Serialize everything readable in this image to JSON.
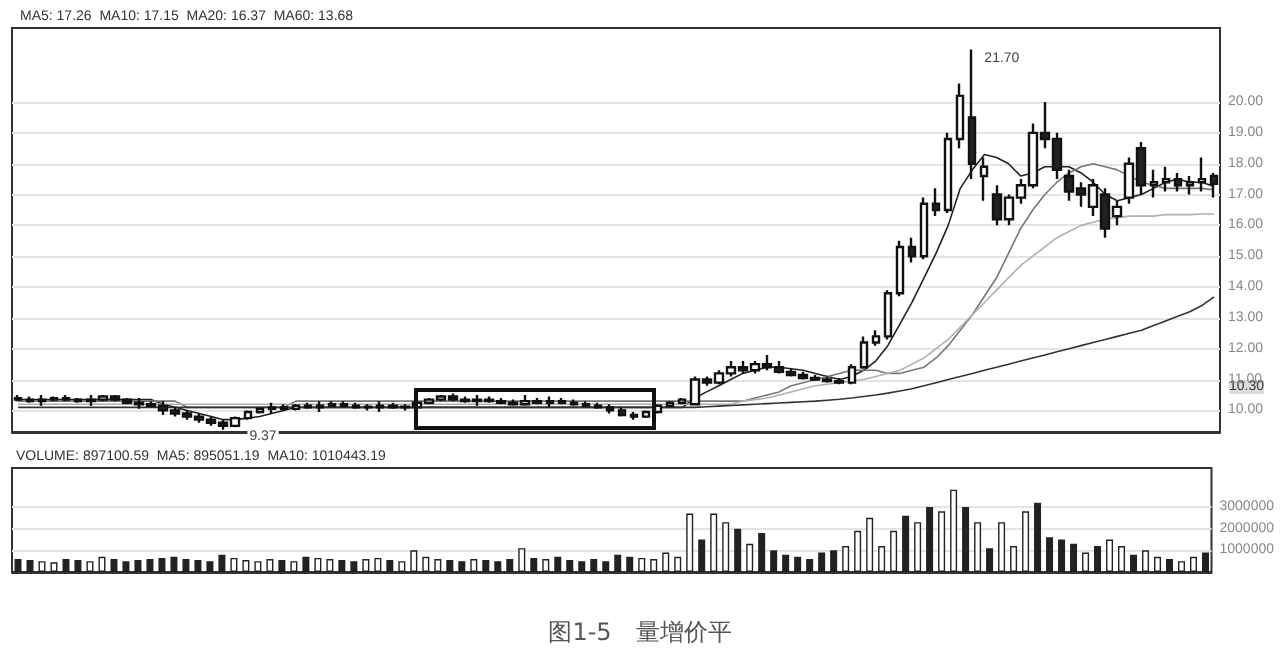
{
  "chart_data": [
    {
      "type": "candlestick",
      "annotations": [
        "MA5: 17.26  MA10: 17.15  MA20: 16.37  MA60: 13.68",
        "21.70",
        "9.37",
        "10.30"
      ],
      "categories": [
        null,
        null,
        null,
        null,
        null,
        null,
        null,
        null,
        null,
        null,
        null,
        null,
        null,
        null,
        null,
        null,
        null,
        null,
        null,
        null,
        null,
        null,
        null,
        null,
        null,
        null,
        null,
        null,
        null,
        null,
        null,
        null,
        null,
        null,
        null,
        null,
        null,
        null,
        null,
        null,
        null,
        null,
        null,
        null,
        null,
        null,
        null,
        null,
        null,
        null,
        null,
        null,
        null,
        null,
        null,
        null,
        null,
        null,
        null,
        null,
        null,
        null,
        null,
        null,
        null,
        null,
        null,
        null,
        null,
        null,
        null,
        null,
        null,
        null,
        null,
        null,
        null,
        null,
        null,
        null,
        null,
        null,
        null,
        null,
        null,
        null,
        null,
        null,
        null,
        null,
        null,
        null,
        null,
        null,
        null,
        null,
        null,
        null,
        null,
        null
      ],
      "ohlc": [
        [
          10.4,
          10.5,
          10.3,
          10.35
        ],
        [
          10.35,
          10.45,
          10.25,
          10.3
        ],
        [
          10.3,
          10.5,
          10.15,
          10.35
        ],
        [
          10.35,
          10.45,
          10.3,
          10.4
        ],
        [
          10.4,
          10.5,
          10.3,
          10.35
        ],
        [
          10.35,
          10.4,
          10.25,
          10.3
        ],
        [
          10.3,
          10.5,
          10.15,
          10.35
        ],
        [
          10.35,
          10.5,
          10.3,
          10.45
        ],
        [
          10.45,
          10.5,
          10.3,
          10.35
        ],
        [
          10.35,
          10.4,
          10.2,
          10.25
        ],
        [
          10.25,
          10.4,
          10.05,
          10.2
        ],
        [
          10.2,
          10.3,
          10.1,
          10.15
        ],
        [
          10.15,
          10.3,
          9.85,
          10.0
        ],
        [
          10.0,
          10.1,
          9.8,
          9.9
        ],
        [
          9.9,
          10.0,
          9.7,
          9.8
        ],
        [
          9.8,
          9.9,
          9.6,
          9.7
        ],
        [
          9.7,
          9.8,
          9.5,
          9.6
        ],
        [
          9.6,
          9.7,
          9.37,
          9.5
        ],
        [
          9.5,
          9.8,
          9.45,
          9.75
        ],
        [
          9.75,
          10.0,
          9.7,
          9.95
        ],
        [
          9.95,
          10.1,
          9.9,
          10.05
        ],
        [
          10.05,
          10.25,
          9.9,
          10.1
        ],
        [
          10.1,
          10.2,
          10.0,
          10.05
        ],
        [
          10.05,
          10.2,
          10.0,
          10.15
        ],
        [
          10.15,
          10.25,
          10.05,
          10.1
        ],
        [
          10.1,
          10.3,
          9.95,
          10.15
        ],
        [
          10.15,
          10.3,
          10.1,
          10.2
        ],
        [
          10.2,
          10.3,
          10.1,
          10.15
        ],
        [
          10.15,
          10.25,
          10.05,
          10.1
        ],
        [
          10.1,
          10.2,
          10.0,
          10.12
        ],
        [
          10.1,
          10.3,
          9.95,
          10.15
        ],
        [
          10.15,
          10.25,
          10.05,
          10.1
        ],
        [
          10.1,
          10.2,
          10.0,
          10.12
        ],
        [
          10.1,
          10.3,
          10.05,
          10.25
        ],
        [
          10.25,
          10.4,
          10.2,
          10.35
        ],
        [
          10.35,
          10.5,
          10.3,
          10.45
        ],
        [
          10.45,
          10.55,
          10.3,
          10.35
        ],
        [
          10.35,
          10.45,
          10.25,
          10.3
        ],
        [
          10.3,
          10.5,
          10.15,
          10.35
        ],
        [
          10.35,
          10.45,
          10.25,
          10.3
        ],
        [
          10.3,
          10.4,
          10.2,
          10.25
        ],
        [
          10.25,
          10.35,
          10.15,
          10.2
        ],
        [
          10.2,
          10.5,
          10.15,
          10.3
        ],
        [
          10.3,
          10.4,
          10.2,
          10.25
        ],
        [
          10.25,
          10.45,
          10.1,
          10.3
        ],
        [
          10.3,
          10.4,
          10.2,
          10.25
        ],
        [
          10.25,
          10.35,
          10.15,
          10.2
        ],
        [
          10.2,
          10.3,
          10.1,
          10.15
        ],
        [
          10.15,
          10.25,
          10.05,
          10.1
        ],
        [
          10.1,
          10.2,
          9.9,
          10.0
        ],
        [
          10.0,
          10.1,
          9.8,
          9.85
        ],
        [
          9.85,
          9.95,
          9.7,
          9.8
        ],
        [
          9.8,
          10.0,
          9.75,
          9.95
        ],
        [
          9.95,
          10.2,
          9.9,
          10.15
        ],
        [
          10.15,
          10.3,
          10.1,
          10.25
        ],
        [
          10.25,
          10.4,
          10.2,
          10.35
        ],
        [
          10.2,
          11.1,
          10.2,
          11.0
        ],
        [
          11.0,
          11.1,
          10.8,
          10.9
        ],
        [
          10.9,
          11.3,
          10.85,
          11.2
        ],
        [
          11.2,
          11.6,
          11.1,
          11.4
        ],
        [
          11.4,
          11.6,
          11.2,
          11.3
        ],
        [
          11.3,
          11.6,
          11.2,
          11.5
        ],
        [
          11.5,
          11.8,
          11.3,
          11.4
        ],
        [
          11.4,
          11.6,
          11.2,
          11.25
        ],
        [
          11.25,
          11.35,
          11.1,
          11.15
        ],
        [
          11.15,
          11.25,
          11.0,
          11.05
        ],
        [
          11.05,
          11.15,
          10.95,
          11.0
        ],
        [
          11.0,
          11.1,
          10.9,
          10.95
        ],
        [
          10.95,
          11.05,
          10.85,
          10.9
        ],
        [
          10.9,
          11.5,
          10.85,
          11.4
        ],
        [
          11.4,
          12.4,
          11.35,
          12.2
        ],
        [
          12.2,
          12.6,
          12.1,
          12.4
        ],
        [
          12.4,
          13.9,
          12.3,
          13.8
        ],
        [
          13.8,
          15.5,
          13.7,
          15.3
        ],
        [
          15.3,
          15.6,
          14.8,
          15.0
        ],
        [
          15.0,
          16.9,
          14.9,
          16.7
        ],
        [
          16.7,
          17.2,
          16.3,
          16.5
        ],
        [
          16.5,
          19.0,
          16.4,
          18.8
        ],
        [
          18.8,
          20.6,
          18.5,
          20.2
        ],
        [
          19.5,
          21.7,
          17.5,
          18.0
        ],
        [
          17.6,
          18.2,
          16.8,
          17.9
        ],
        [
          17.0,
          17.3,
          16.0,
          16.2
        ],
        [
          16.2,
          17.0,
          16.0,
          16.9
        ],
        [
          16.9,
          17.5,
          16.7,
          17.3
        ],
        [
          17.3,
          19.3,
          17.2,
          19.0
        ],
        [
          19.0,
          20.0,
          18.5,
          18.8
        ],
        [
          18.8,
          19.0,
          17.5,
          17.8
        ],
        [
          17.6,
          17.8,
          16.8,
          17.1
        ],
        [
          17.2,
          17.4,
          16.6,
          17.0
        ],
        [
          16.6,
          17.5,
          16.3,
          17.3
        ],
        [
          17.0,
          17.2,
          15.6,
          15.9
        ],
        [
          16.3,
          16.8,
          16.0,
          16.6
        ],
        [
          16.9,
          18.2,
          16.7,
          18.0
        ],
        [
          18.5,
          18.7,
          17.0,
          17.3
        ],
        [
          17.3,
          17.8,
          16.9,
          17.4
        ],
        [
          17.4,
          17.9,
          17.1,
          17.5
        ],
        [
          17.5,
          17.7,
          17.1,
          17.3
        ],
        [
          17.3,
          17.6,
          17.0,
          17.4
        ],
        [
          17.4,
          18.2,
          17.1,
          17.5
        ],
        [
          17.6,
          17.7,
          16.9,
          17.35
        ]
      ],
      "series": [
        {
          "type": "line",
          "color": "#222222",
          "values": [
            10.35,
            10.35,
            10.35,
            10.35,
            10.35,
            10.35,
            10.35,
            10.35,
            10.35,
            10.35,
            10.35,
            10.35,
            10.2,
            10.1,
            10.0,
            9.9,
            9.8,
            9.7,
            9.7,
            9.75,
            9.8,
            9.9,
            10.0,
            10.1,
            10.1,
            10.1,
            10.1,
            10.1,
            10.1,
            10.1,
            10.1,
            10.1,
            10.1,
            10.1,
            10.1,
            10.1,
            10.1,
            10.1,
            10.1,
            10.1,
            10.1,
            10.1,
            10.1,
            10.1,
            10.1,
            10.1,
            10.1,
            10.1,
            10.1,
            10.1,
            10.1,
            10.1,
            10.1,
            10.1,
            10.1,
            10.1,
            10.4,
            10.6,
            10.8,
            11.0,
            11.2,
            11.3,
            11.4,
            11.4,
            11.35,
            11.3,
            11.2,
            11.1,
            11.0,
            11.1,
            11.3,
            11.6,
            12.1,
            12.8,
            13.5,
            14.3,
            15.1,
            16.0,
            17.2,
            17.8,
            18.3,
            18.2,
            18.0,
            17.6,
            17.7,
            17.9,
            17.9,
            17.9,
            17.7,
            17.4,
            17.0,
            16.8,
            16.9,
            17.0,
            17.2,
            17.4,
            17.5,
            17.4,
            17.4,
            17.26
          ]
        },
        {
          "type": "line",
          "color": "#777777",
          "values": [
            10.3,
            10.3,
            10.3,
            10.3,
            10.3,
            10.3,
            10.3,
            10.3,
            10.3,
            10.3,
            10.3,
            10.3,
            10.3,
            10.3,
            10.1,
            10.1,
            10.1,
            10.1,
            10.1,
            10.1,
            10.1,
            10.1,
            10.1,
            10.3,
            10.3,
            10.3,
            10.3,
            10.3,
            10.3,
            10.3,
            10.3,
            10.3,
            10.3,
            10.3,
            10.3,
            10.3,
            10.3,
            10.3,
            10.3,
            10.3,
            10.3,
            10.3,
            10.3,
            10.3,
            10.3,
            10.3,
            10.3,
            10.3,
            10.3,
            10.3,
            10.3,
            10.3,
            10.3,
            10.3,
            10.3,
            10.3,
            10.3,
            10.3,
            10.3,
            10.3,
            10.3,
            10.4,
            10.5,
            10.6,
            10.8,
            10.9,
            11.0,
            11.1,
            11.2,
            11.3,
            11.3,
            11.3,
            11.2,
            11.2,
            11.3,
            11.4,
            11.7,
            12.1,
            12.6,
            13.1,
            13.7,
            14.3,
            15.1,
            15.9,
            16.5,
            17.0,
            17.4,
            17.7,
            17.9,
            18.0,
            17.9,
            17.8,
            17.6,
            17.4,
            17.3,
            17.2,
            17.2,
            17.2,
            17.2,
            17.15
          ]
        },
        {
          "type": "line",
          "color": "#b0b0b0",
          "values": [
            10.2,
            10.2,
            10.2,
            10.2,
            10.2,
            10.2,
            10.2,
            10.2,
            10.2,
            10.2,
            10.2,
            10.2,
            10.2,
            10.2,
            10.2,
            10.2,
            10.2,
            10.2,
            10.2,
            10.2,
            10.2,
            10.2,
            10.2,
            10.2,
            10.2,
            10.2,
            10.2,
            10.2,
            10.2,
            10.2,
            10.2,
            10.2,
            10.2,
            10.2,
            10.2,
            10.2,
            10.2,
            10.2,
            10.2,
            10.2,
            10.2,
            10.2,
            10.2,
            10.2,
            10.2,
            10.2,
            10.2,
            10.2,
            10.2,
            10.2,
            10.2,
            10.2,
            10.2,
            10.2,
            10.2,
            10.2,
            10.2,
            10.2,
            10.2,
            10.2,
            10.3,
            10.35,
            10.4,
            10.5,
            10.6,
            10.7,
            10.8,
            10.85,
            10.9,
            10.95,
            11.0,
            11.1,
            11.2,
            11.3,
            11.5,
            11.7,
            12.0,
            12.3,
            12.7,
            13.1,
            13.5,
            13.9,
            14.3,
            14.7,
            15.0,
            15.3,
            15.6,
            15.8,
            16.0,
            16.1,
            16.2,
            16.25,
            16.3,
            16.3,
            16.3,
            16.35,
            16.35,
            16.35,
            16.37,
            16.37
          ]
        },
        {
          "type": "line",
          "color": "#333333",
          "values": [
            10.1,
            10.1,
            10.1,
            10.1,
            10.1,
            10.1,
            10.1,
            10.1,
            10.1,
            10.1,
            10.1,
            10.1,
            10.1,
            10.1,
            10.1,
            10.1,
            10.1,
            10.1,
            10.1,
            10.1,
            10.1,
            10.1,
            10.1,
            10.1,
            10.1,
            10.1,
            10.1,
            10.1,
            10.1,
            10.1,
            10.1,
            10.1,
            10.1,
            10.1,
            10.1,
            10.1,
            10.1,
            10.1,
            10.1,
            10.1,
            10.1,
            10.1,
            10.1,
            10.1,
            10.1,
            10.1,
            10.1,
            10.1,
            10.1,
            10.1,
            10.1,
            10.1,
            10.1,
            10.1,
            10.1,
            10.1,
            10.1,
            10.12,
            10.14,
            10.16,
            10.18,
            10.2,
            10.22,
            10.24,
            10.26,
            10.28,
            10.3,
            10.33,
            10.36,
            10.4,
            10.45,
            10.5,
            10.56,
            10.63,
            10.7,
            10.8,
            10.9,
            11.0,
            11.1,
            11.2,
            11.3,
            11.4,
            11.5,
            11.6,
            11.7,
            11.8,
            11.9,
            12.0,
            12.1,
            12.2,
            12.3,
            12.4,
            12.5,
            12.6,
            12.75,
            12.9,
            13.05,
            13.2,
            13.4,
            13.68
          ]
        }
      ],
      "ylim": [
        9.3,
        22.4
      ],
      "yticks": [
        {
          "value": 10,
          "label": "10.00"
        },
        {
          "value": 11,
          "label": "11.00"
        },
        {
          "value": 12,
          "label": "12.00"
        },
        {
          "value": 13,
          "label": "13.00"
        },
        {
          "value": 14,
          "label": "14.00"
        },
        {
          "value": 15,
          "label": "15.00"
        },
        {
          "value": 16,
          "label": "16.00"
        },
        {
          "value": 17,
          "label": "17.00"
        },
        {
          "value": 18,
          "label": "18.00"
        },
        {
          "value": 19,
          "label": "19.00"
        },
        {
          "value": 20,
          "label": "20.00"
        }
      ],
      "grid": "y",
      "tick_labels": "y"
    },
    {
      "type": "bar",
      "title": "图1-5　量增价平",
      "annotations": [
        "VOLUME: 897100.59  MA5: 895051.19  MA10: 1010443.19"
      ],
      "categories": [
        null,
        null,
        null,
        null,
        null,
        null,
        null,
        null,
        null,
        null,
        null,
        null,
        null,
        null,
        null,
        null,
        null,
        null,
        null,
        null,
        null,
        null,
        null,
        null,
        null,
        null,
        null,
        null,
        null,
        null,
        null,
        null,
        null,
        null,
        null,
        null,
        null,
        null,
        null,
        null,
        null,
        null,
        null,
        null,
        null,
        null,
        null,
        null,
        null,
        null,
        null,
        null,
        null,
        null,
        null,
        null,
        null,
        null,
        null,
        null,
        null,
        null,
        null,
        null,
        null,
        null,
        null,
        null,
        null,
        null,
        null,
        null,
        null,
        null,
        null,
        null,
        null,
        null,
        null,
        null,
        null,
        null,
        null,
        null,
        null,
        null,
        null,
        null,
        null,
        null,
        null,
        null,
        null,
        null,
        null,
        null,
        null,
        null,
        null,
        null
      ],
      "values": [
        600000,
        550000,
        500000,
        450000,
        600000,
        550000,
        500000,
        700000,
        600000,
        500000,
        550000,
        600000,
        650000,
        700000,
        600000,
        550000,
        500000,
        800000,
        650000,
        550000,
        500000,
        600000,
        550000,
        500000,
        700000,
        650000,
        600000,
        550000,
        500000,
        600000,
        650000,
        550000,
        500000,
        1000000,
        700000,
        600000,
        550000,
        500000,
        600000,
        550000,
        500000,
        600000,
        1100000,
        650000,
        600000,
        700000,
        550000,
        500000,
        600000,
        500000,
        800000,
        700000,
        650000,
        600000,
        900000,
        700000,
        2700000,
        1500000,
        2700000,
        2300000,
        2000000,
        1300000,
        1800000,
        1000000,
        800000,
        700000,
        600000,
        900000,
        1000000,
        1200000,
        1900000,
        2500000,
        1200000,
        1900000,
        2600000,
        2300000,
        3000000,
        2800000,
        3800000,
        3000000,
        2300000,
        1100000,
        2300000,
        1200000,
        2800000,
        3200000,
        1600000,
        1500000,
        1300000,
        900000,
        1200000,
        1500000,
        1200000,
        800000,
        1000000,
        700000,
        600000,
        500000,
        700000,
        900000
      ],
      "colors": [
        "#222222",
        "#222222",
        "#ffffff",
        "#ffffff",
        "#222222",
        "#222222",
        "#ffffff",
        "#ffffff",
        "#222222",
        "#222222",
        "#222222",
        "#222222",
        "#222222",
        "#222222",
        "#222222",
        "#222222",
        "#222222",
        "#222222",
        "#ffffff",
        "#ffffff",
        "#ffffff",
        "#ffffff",
        "#222222",
        "#ffffff",
        "#222222",
        "#ffffff",
        "#ffffff",
        "#222222",
        "#222222",
        "#ffffff",
        "#ffffff",
        "#222222",
        "#ffffff",
        "#ffffff",
        "#ffffff",
        "#ffffff",
        "#222222",
        "#222222",
        "#ffffff",
        "#222222",
        "#222222",
        "#222222",
        "#ffffff",
        "#222222",
        "#ffffff",
        "#222222",
        "#222222",
        "#222222",
        "#222222",
        "#222222",
        "#222222",
        "#222222",
        "#ffffff",
        "#ffffff",
        "#ffffff",
        "#ffffff",
        "#ffffff",
        "#222222",
        "#ffffff",
        "#ffffff",
        "#222222",
        "#ffffff",
        "#222222",
        "#222222",
        "#222222",
        "#222222",
        "#222222",
        "#222222",
        "#222222",
        "#ffffff",
        "#ffffff",
        "#ffffff",
        "#ffffff",
        "#ffffff",
        "#222222",
        "#ffffff",
        "#222222",
        "#ffffff",
        "#ffffff",
        "#222222",
        "#ffffff",
        "#222222",
        "#ffffff",
        "#ffffff",
        "#ffffff",
        "#222222",
        "#222222",
        "#222222",
        "#222222",
        "#ffffff",
        "#222222",
        "#ffffff",
        "#ffffff",
        "#222222",
        "#ffffff",
        "#ffffff",
        "#222222",
        "#ffffff",
        "#ffffff",
        "#222222"
      ],
      "ylim": [
        0,
        4800000
      ],
      "yticks": [
        1000000,
        2000000,
        3000000
      ],
      "grid": "y",
      "tick_labels": "y"
    }
  ]
}
